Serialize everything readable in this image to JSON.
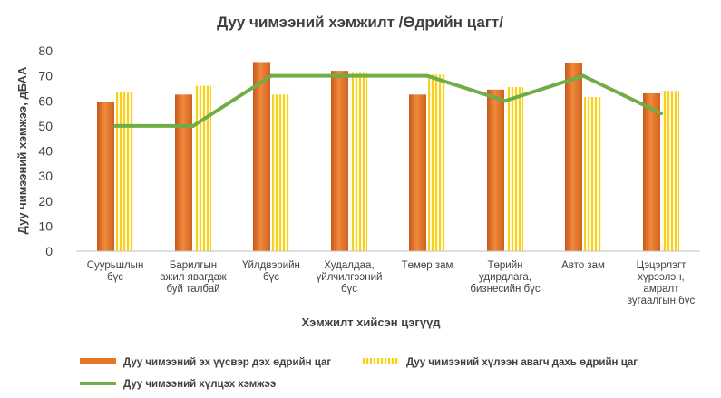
{
  "chart_data": {
    "type": "bar",
    "title": "Дуу чимээний хэмжилт /Өдрийн цагт/",
    "xlabel": "Хэмжилт хийсэн цэгүүд",
    "ylabel": "Дуу чимээний хэмжээ, дБАА",
    "ylim": [
      0,
      80
    ],
    "yticks": [
      0,
      10,
      20,
      30,
      40,
      50,
      60,
      70,
      80
    ],
    "categories": [
      [
        "Суурьшлын",
        "бүс"
      ],
      [
        "Барилгын",
        "ажил явагдаж",
        "буй талбай"
      ],
      [
        "Үйлдвэрийн",
        "бүс"
      ],
      [
        "Худалдаа,",
        "үйлчилгээний",
        "бүс"
      ],
      [
        "Төмөр зам"
      ],
      [
        "Төрийн",
        "удирдлага,",
        "бизнесийн бүс"
      ],
      [
        "Авто зам"
      ],
      [
        "Цэцэрлэгт",
        "хүрээлэн,",
        "амралт",
        "зугаалгын бүс"
      ]
    ],
    "series": [
      {
        "name": "Дуу чимээний эх үүсвэр дэх өдрийн цаг",
        "kind": "bar",
        "color": "#e8742a",
        "values": [
          59.5,
          62.5,
          75.5,
          72,
          62.5,
          64.5,
          75,
          63
        ]
      },
      {
        "name": "Дуу чимээний хүлээн авагч дахь өдрийн цаг",
        "kind": "bar",
        "color": "#fdd835",
        "values": [
          63.5,
          66,
          62.5,
          71.5,
          70.5,
          65.5,
          61.5,
          64
        ]
      },
      {
        "name": "Дуу чимээний хүлцэх хэмжээ",
        "kind": "line",
        "color": "#70ad47",
        "values": [
          50,
          50,
          70,
          70,
          70,
          60,
          70,
          55
        ]
      }
    ],
    "legend_position": "bottom",
    "grid": false
  }
}
